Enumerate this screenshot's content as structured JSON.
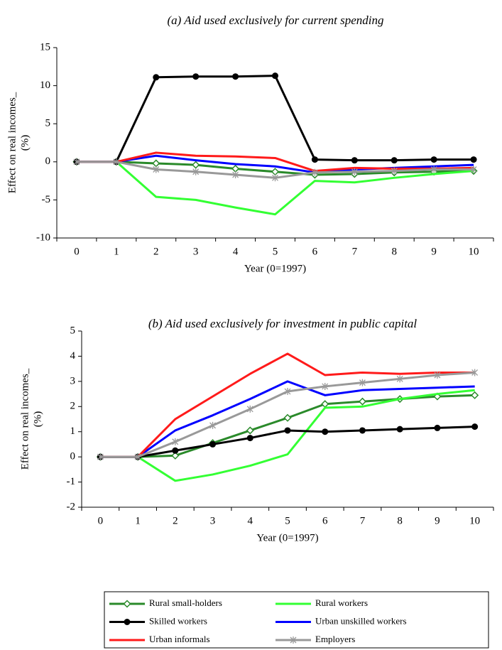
{
  "chart_data": [
    {
      "type": "line",
      "title": "(a)  Aid used exclusively for current spending",
      "xlabel": "Year (0=1997)",
      "ylabel": [
        "Effect on real incomes_",
        "(%)"
      ],
      "categories": [
        0,
        1,
        2,
        3,
        4,
        5,
        6,
        7,
        8,
        9,
        10
      ],
      "ylim": [
        -10,
        15
      ],
      "yticks": [
        -10,
        -5,
        0,
        5,
        10,
        15
      ],
      "series": [
        {
          "values": [
            0,
            0,
            -0.2,
            -0.4,
            -0.9,
            -1.3,
            -1.7,
            -1.6,
            -1.4,
            -1.3,
            -1.2
          ]
        },
        {
          "values": [
            0,
            0,
            -4.6,
            -5.0,
            -6.0,
            -6.9,
            -2.5,
            -2.7,
            -2.1,
            -1.6,
            -1.2
          ]
        },
        {
          "values": [
            0,
            0,
            11.1,
            11.2,
            11.2,
            11.3,
            0.3,
            0.2,
            0.2,
            0.3,
            0.3
          ]
        },
        {
          "values": [
            0,
            0,
            0.8,
            0.2,
            -0.3,
            -0.6,
            -1.4,
            -1.0,
            -0.8,
            -0.6,
            -0.4
          ]
        },
        {
          "values": [
            0,
            0,
            1.2,
            0.8,
            0.7,
            0.5,
            -1.2,
            -0.8,
            -0.9,
            -0.9,
            -0.8
          ]
        },
        {
          "values": [
            0,
            0,
            -1.0,
            -1.3,
            -1.7,
            -2.1,
            -1.4,
            -1.3,
            -1.2,
            -1.0,
            -1.0
          ]
        }
      ]
    },
    {
      "type": "line",
      "title": "(b) Aid used exclusively for investment in public capital",
      "xlabel": "Year (0=1997)",
      "ylabel": [
        "Effect on real incomes_",
        "(%)"
      ],
      "categories": [
        0,
        1,
        2,
        3,
        4,
        5,
        6,
        7,
        8,
        9,
        10
      ],
      "ylim": [
        -2,
        5
      ],
      "yticks": [
        -2,
        -1,
        0,
        1,
        2,
        3,
        4,
        5
      ],
      "series": [
        {
          "values": [
            0,
            0,
            0.05,
            0.55,
            1.05,
            1.55,
            2.1,
            2.2,
            2.3,
            2.4,
            2.45
          ]
        },
        {
          "values": [
            0,
            0,
            -0.95,
            -0.7,
            -0.35,
            0.1,
            1.95,
            2.0,
            2.3,
            2.5,
            2.65
          ]
        },
        {
          "values": [
            0,
            0,
            0.25,
            0.5,
            0.75,
            1.05,
            1.0,
            1.05,
            1.1,
            1.15,
            1.2
          ]
        },
        {
          "values": [
            0,
            0,
            1.05,
            1.65,
            2.3,
            3.0,
            2.45,
            2.65,
            2.7,
            2.75,
            2.8
          ]
        },
        {
          "values": [
            0,
            0,
            1.5,
            2.4,
            3.3,
            4.1,
            3.25,
            3.35,
            3.3,
            3.35,
            3.35
          ]
        },
        {
          "values": [
            0,
            0,
            0.6,
            1.25,
            1.9,
            2.6,
            2.8,
            2.95,
            3.1,
            3.25,
            3.35
          ]
        }
      ]
    }
  ],
  "legend": {
    "series": [
      {
        "name": "Rural small-holders",
        "color": "#2a8a2a",
        "marker": "diamond"
      },
      {
        "name": "Rural workers",
        "color": "#33ff33",
        "marker": "none"
      },
      {
        "name": "Skilled workers",
        "color": "#000000",
        "marker": "circle"
      },
      {
        "name": "Urban unskilled workers",
        "color": "#0000ff",
        "marker": "none"
      },
      {
        "name": "Urban informals",
        "color": "#ff1a1a",
        "marker": "none"
      },
      {
        "name": "Employers",
        "color": "#999999",
        "marker": "star"
      }
    ]
  }
}
